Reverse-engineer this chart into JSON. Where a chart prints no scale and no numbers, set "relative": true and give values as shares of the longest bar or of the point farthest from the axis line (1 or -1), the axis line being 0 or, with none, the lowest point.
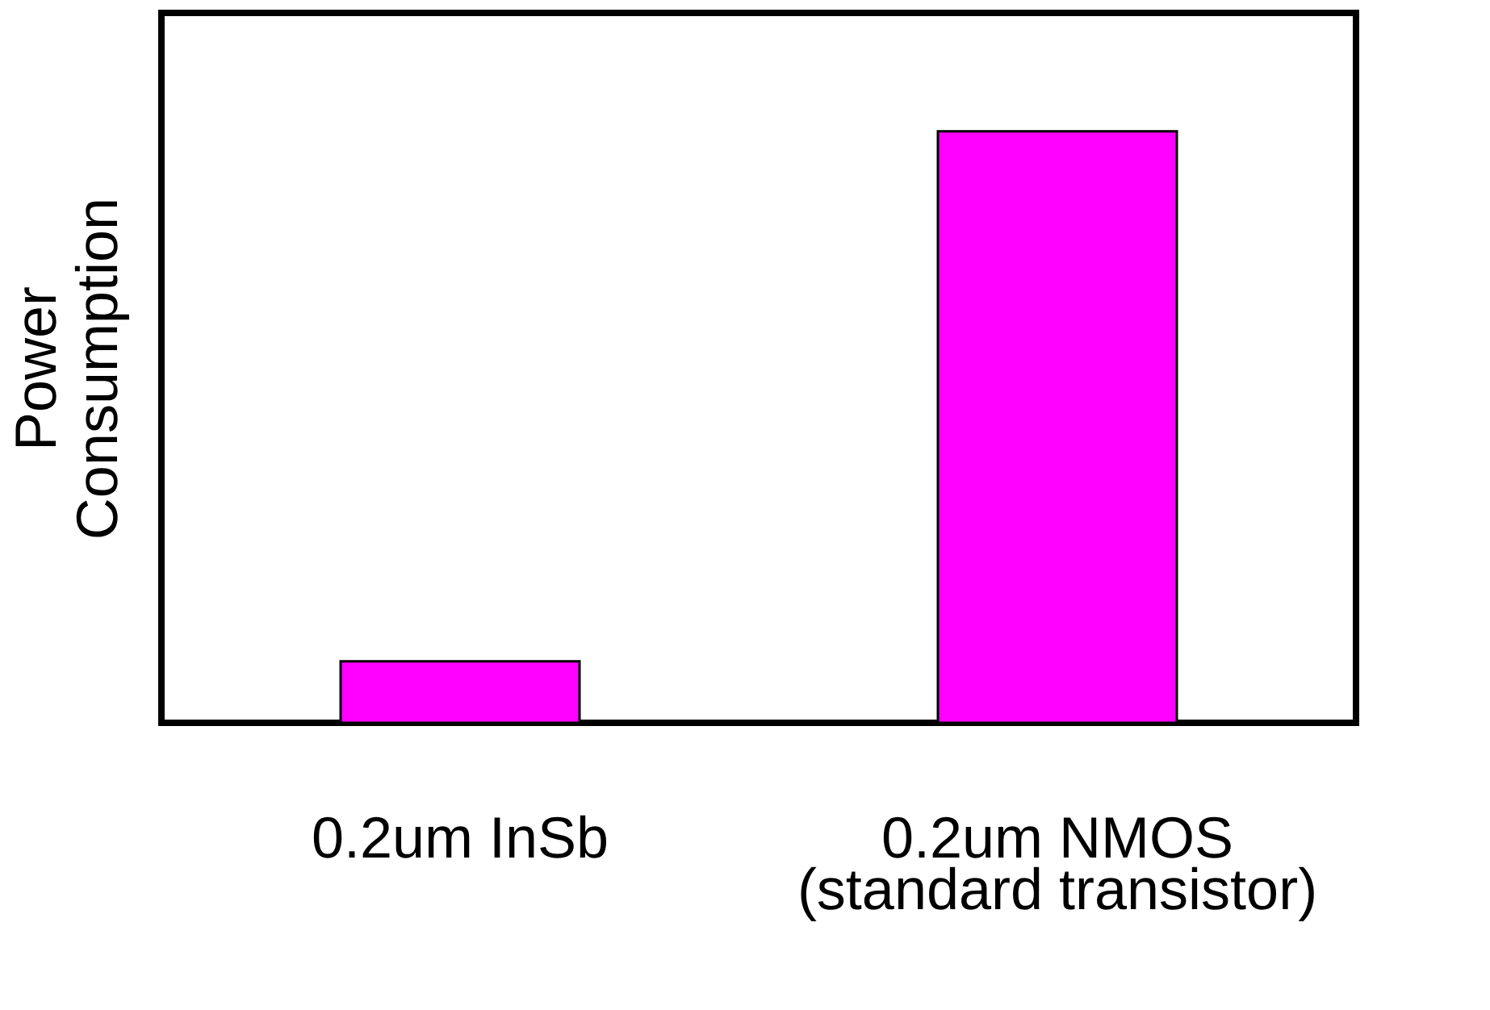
{
  "chart_data": {
    "type": "bar",
    "relative": true,
    "ylabel": "Power Consumption",
    "categories": [
      "0.2um InSb",
      "0.2um NMOS\n(standard transistor)"
    ],
    "values": [
      0.104,
      1
    ],
    "color": "#ff00ff",
    "grid": false
  }
}
